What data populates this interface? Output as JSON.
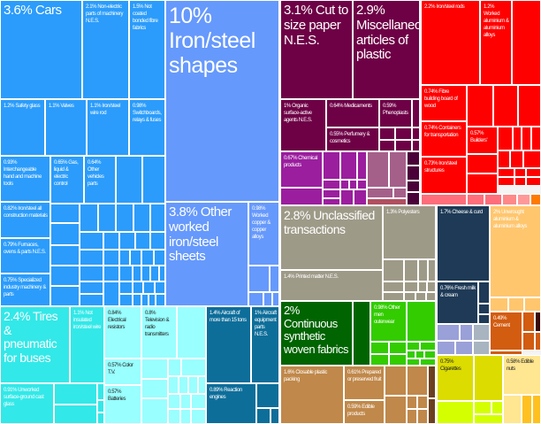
{
  "chart_data": {
    "type": "treemap",
    "unit": "%",
    "items": [
      {
        "name": "Cars",
        "value": 3.6,
        "color": "#2b9cfb"
      },
      {
        "name": "Non-electric parts of machinery N.E.S.",
        "value": 2.1,
        "color": "#2b9cfb"
      },
      {
        "name": "Not coated bonded fibre fabrics",
        "value": 1.5,
        "color": "#2b9cfb"
      },
      {
        "name": "Safety glass",
        "value": 1.2,
        "color": "#2b9cfb"
      },
      {
        "name": "Valves",
        "value": 1.1,
        "color": "#2b9cfb"
      },
      {
        "name": "Iron/steel wire rod",
        "value": 1.1,
        "color": "#2b9cfb"
      },
      {
        "name": "Switchboards, relays & fuses",
        "value": 0.98,
        "color": "#2b9cfb"
      },
      {
        "name": "Interchangeable hand and machine tools",
        "value": 0.93,
        "color": "#2b9cfb"
      },
      {
        "name": "Gas, liquid & electric control",
        "value": 0.65,
        "color": "#2b9cfb"
      },
      {
        "name": "Other vehicles parts",
        "value": 0.64,
        "color": "#2b9cfb"
      },
      {
        "name": "Iron/steel all construction materials",
        "value": 0.82,
        "color": "#2b9cfb"
      },
      {
        "name": "Furnaces, ovens & parts N.E.S.",
        "value": 0.79,
        "color": "#2b9cfb"
      },
      {
        "name": "Specialized industry machinery & parts",
        "value": 0.75,
        "color": "#2b9cfb"
      },
      {
        "name": "Iron/steel shapes",
        "value": 10,
        "color": "#6699fc"
      },
      {
        "name": "Other worked iron/steel sheets",
        "value": 3.8,
        "color": "#6699fc"
      },
      {
        "name": "Worked copper & copper alloys",
        "value": 0.98,
        "color": "#6699fc"
      },
      {
        "name": "Tires & pneumatic for buses",
        "value": 2.4,
        "color": "#33e8e8"
      },
      {
        "name": "Not insulated iron/steel wire",
        "value": 1.1,
        "color": "#33e8e8"
      },
      {
        "name": "Unworked surface-ground cast glass",
        "value": 0.91,
        "color": "#33e8e8"
      },
      {
        "name": "Electrical resistors",
        "value": 0.84,
        "color": "#99ffff"
      },
      {
        "name": "Television & radio transmitters",
        "value": 0.8,
        "color": "#99ffff"
      },
      {
        "name": "Color T.V.",
        "value": 0.57,
        "color": "#99ffff"
      },
      {
        "name": "Batteries",
        "value": 0.57,
        "color": "#99ffff"
      },
      {
        "name": "Aircraft of more than 15 tons",
        "value": 1.4,
        "color": "#0e6e9a"
      },
      {
        "name": "Aircraft equipment parts N.E.S.",
        "value": 1.0,
        "color": "#0e6e9a"
      },
      {
        "name": "Reaction engines",
        "value": 0.89,
        "color": "#0e6e9a"
      },
      {
        "name": "Cut to size paper N.E.S.",
        "value": 3.1,
        "color": "#6e0046"
      },
      {
        "name": "Miscellaneous articles of plastic",
        "value": 2.9,
        "color": "#6e0046"
      },
      {
        "name": "Organic surface-active agents N.E.S.",
        "value": 1.0,
        "color": "#6e0046"
      },
      {
        "name": "Medicaments",
        "value": 0.64,
        "color": "#6e0046"
      },
      {
        "name": "Phenoplasts",
        "value": 0.59,
        "color": "#6e0046"
      },
      {
        "name": "Perfumery & cosmetics",
        "value": 0.55,
        "color": "#6e0046"
      },
      {
        "name": "Chemical products",
        "value": 0.67,
        "color": "#9b1e9e"
      },
      {
        "name": "Iron/steel rods",
        "value": 2.2,
        "color": "#ff0000"
      },
      {
        "name": "Worked aluminium & aluminium alloys",
        "value": 1.2,
        "color": "#ff0000"
      },
      {
        "name": "Fibre building board of wood",
        "value": 0.74,
        "color": "#ff0000"
      },
      {
        "name": "Containers for transportation",
        "value": 0.74,
        "color": "#ff0000"
      },
      {
        "name": "Builders'",
        "value": 0.57,
        "color": "#ff0000"
      },
      {
        "name": "Iron/steel structures",
        "value": 0.73,
        "color": "#ff0000"
      },
      {
        "name": "Unclassified transactions",
        "value": 2.8,
        "color": "#9e9a88"
      },
      {
        "name": "Polyesters",
        "value": 1.3,
        "color": "#9e9a88"
      },
      {
        "name": "Printed matter N.E.S.",
        "value": 1.4,
        "color": "#9e9a88"
      },
      {
        "name": "Continuous synthetic woven fabrics",
        "value": 2.0,
        "color": "#006400"
      },
      {
        "name": "Other men outerwear",
        "value": 0.98,
        "color": "#33cc00"
      },
      {
        "name": "Closable plastic packing",
        "value": 1.6,
        "color": "#c0884a"
      },
      {
        "name": "Prepared or preserved fruit",
        "value": 0.61,
        "color": "#c0884a"
      },
      {
        "name": "Edible products",
        "value": 0.59,
        "color": "#c0884a"
      },
      {
        "name": "Cheese & curd",
        "value": 1.7,
        "color": "#1e3a56"
      },
      {
        "name": "Fresh milk & cream",
        "value": 0.76,
        "color": "#1e3a56"
      },
      {
        "name": "Unwrought aluminium & aluminium alloys",
        "value": 2.0,
        "color": "#ffc66e"
      },
      {
        "name": "Cement",
        "value": 0.49,
        "color": "#d25c10"
      },
      {
        "name": "Cigarettes",
        "value": 0.75,
        "color": "#dcdc00"
      },
      {
        "name": "Edible nuts",
        "value": 0.58,
        "color": "#ffe690"
      }
    ]
  }
}
